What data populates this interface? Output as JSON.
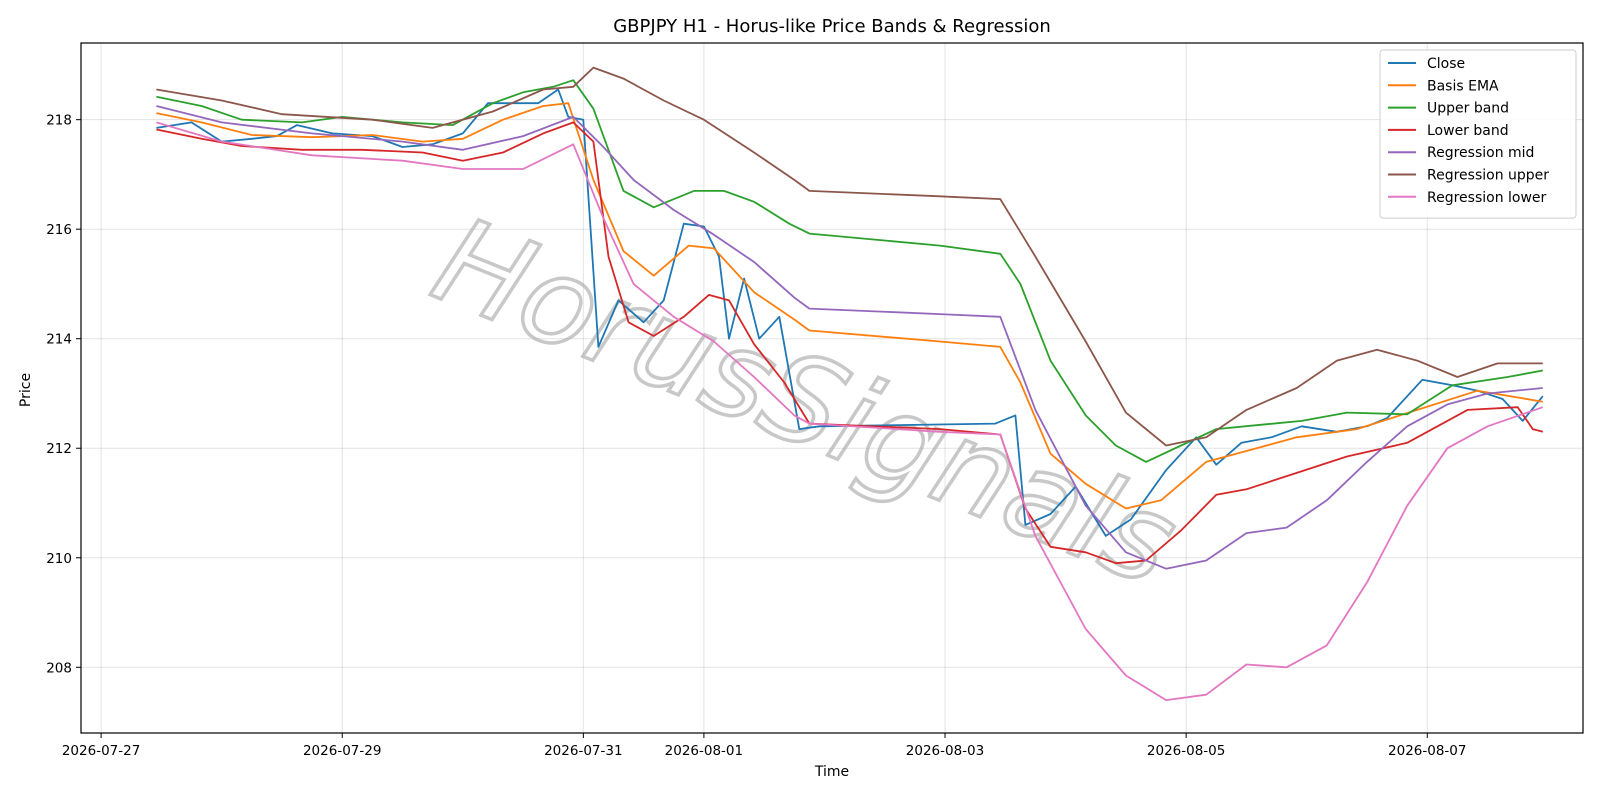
{
  "chart_data": {
    "type": "line",
    "title": "GBPJPY H1 - Horus-like Price Bands & Regression",
    "xlabel": "Time",
    "ylabel": "Price",
    "watermark": "HorusSignals",
    "x_range": [
      "2026-07-26T20:00",
      "2026-08-08T07:00"
    ],
    "ylim": [
      206.8,
      219.4
    ],
    "x_ticks": [
      "2026-07-27",
      "2026-07-29",
      "2026-07-31",
      "2026-08-01",
      "2026-08-03",
      "2026-08-05",
      "2026-08-07"
    ],
    "y_ticks": [
      208,
      210,
      212,
      214,
      216,
      218
    ],
    "grid": true,
    "legend_position": "top-right",
    "series": [
      {
        "name": "Close",
        "color": "#1f77b4",
        "points": [
          [
            "2026-07-27T11:00",
            217.85
          ],
          [
            "2026-07-27T18:00",
            217.95
          ],
          [
            "2026-07-28T00:00",
            217.6
          ],
          [
            "2026-07-28T06:00",
            217.65
          ],
          [
            "2026-07-28T11:00",
            217.7
          ],
          [
            "2026-07-28T15:00",
            217.9
          ],
          [
            "2026-07-28T22:00",
            217.75
          ],
          [
            "2026-07-29T06:00",
            217.7
          ],
          [
            "2026-07-29T12:00",
            217.5
          ],
          [
            "2026-07-29T18:00",
            217.55
          ],
          [
            "2026-07-30T00:00",
            217.75
          ],
          [
            "2026-07-30T05:00",
            218.3
          ],
          [
            "2026-07-30T10:00",
            218.3
          ],
          [
            "2026-07-30T15:00",
            218.3
          ],
          [
            "2026-07-30T19:00",
            218.55
          ],
          [
            "2026-07-30T21:00",
            218.05
          ],
          [
            "2026-07-31T00:00",
            218.0
          ],
          [
            "2026-07-31T03:00",
            213.85
          ],
          [
            "2026-07-31T07:00",
            214.7
          ],
          [
            "2026-07-31T12:00",
            214.3
          ],
          [
            "2026-07-31T16:00",
            214.7
          ],
          [
            "2026-07-31T20:00",
            216.1
          ],
          [
            "2026-08-01T00:00",
            216.05
          ],
          [
            "2026-08-01T03:00",
            215.5
          ],
          [
            "2026-08-01T05:00",
            214.0
          ],
          [
            "2026-08-01T08:00",
            215.1
          ],
          [
            "2026-08-01T11:00",
            214.0
          ],
          [
            "2026-08-01T15:00",
            214.4
          ],
          [
            "2026-08-01T19:00",
            212.35
          ],
          [
            "2026-08-01T23:00",
            212.4
          ],
          [
            "2026-08-03T10:00",
            212.45
          ],
          [
            "2026-08-03T14:00",
            212.6
          ],
          [
            "2026-08-03T16:00",
            210.6
          ],
          [
            "2026-08-03T21:00",
            210.8
          ],
          [
            "2026-08-04T02:00",
            211.3
          ],
          [
            "2026-08-04T08:00",
            210.4
          ],
          [
            "2026-08-04T13:00",
            210.7
          ],
          [
            "2026-08-04T20:00",
            211.6
          ],
          [
            "2026-08-05T02:00",
            212.2
          ],
          [
            "2026-08-05T06:00",
            211.7
          ],
          [
            "2026-08-05T11:00",
            212.1
          ],
          [
            "2026-08-05T17:00",
            212.2
          ],
          [
            "2026-08-05T23:00",
            212.4
          ],
          [
            "2026-08-06T06:00",
            212.3
          ],
          [
            "2026-08-06T12:00",
            212.4
          ],
          [
            "2026-08-06T16:00",
            212.55
          ],
          [
            "2026-08-06T23:00",
            213.25
          ],
          [
            "2026-08-07T05:00",
            213.15
          ],
          [
            "2026-08-07T10:00",
            213.05
          ],
          [
            "2026-08-07T15:00",
            212.9
          ],
          [
            "2026-08-07T19:00",
            212.5
          ],
          [
            "2026-08-07T23:00",
            212.95
          ]
        ]
      },
      {
        "name": "Basis EMA",
        "color": "#ff7f0e",
        "points": [
          [
            "2026-07-27T11:00",
            218.12
          ],
          [
            "2026-07-27T20:00",
            217.95
          ],
          [
            "2026-07-28T06:00",
            217.72
          ],
          [
            "2026-07-28T18:00",
            217.68
          ],
          [
            "2026-07-29T06:00",
            217.72
          ],
          [
            "2026-07-29T16:00",
            217.6
          ],
          [
            "2026-07-30T00:00",
            217.65
          ],
          [
            "2026-07-30T08:00",
            218.0
          ],
          [
            "2026-07-30T16:00",
            218.25
          ],
          [
            "2026-07-30T21:00",
            218.3
          ],
          [
            "2026-07-31T02:00",
            216.9
          ],
          [
            "2026-07-31T08:00",
            215.6
          ],
          [
            "2026-07-31T14:00",
            215.15
          ],
          [
            "2026-07-31T21:00",
            215.7
          ],
          [
            "2026-08-01T02:00",
            215.65
          ],
          [
            "2026-08-01T10:00",
            214.85
          ],
          [
            "2026-08-01T18:00",
            214.35
          ],
          [
            "2026-08-01T21:00",
            214.15
          ],
          [
            "2026-08-02T23:00",
            213.95
          ],
          [
            "2026-08-03T11:00",
            213.85
          ],
          [
            "2026-08-03T15:00",
            213.2
          ],
          [
            "2026-08-03T21:00",
            211.9
          ],
          [
            "2026-08-04T04:00",
            211.35
          ],
          [
            "2026-08-04T12:00",
            210.9
          ],
          [
            "2026-08-04T19:00",
            211.05
          ],
          [
            "2026-08-05T04:00",
            211.75
          ],
          [
            "2026-08-05T12:00",
            211.95
          ],
          [
            "2026-08-05T22:00",
            212.2
          ],
          [
            "2026-08-06T10:00",
            212.35
          ],
          [
            "2026-08-06T22:00",
            212.7
          ],
          [
            "2026-08-07T10:00",
            213.05
          ],
          [
            "2026-08-07T23:00",
            212.85
          ]
        ]
      },
      {
        "name": "Upper band",
        "color": "#2ca02c",
        "points": [
          [
            "2026-07-27T11:00",
            218.42
          ],
          [
            "2026-07-27T20:00",
            218.25
          ],
          [
            "2026-07-28T04:00",
            218.0
          ],
          [
            "2026-07-28T16:00",
            217.95
          ],
          [
            "2026-07-29T00:00",
            218.05
          ],
          [
            "2026-07-29T12:00",
            217.95
          ],
          [
            "2026-07-29T22:00",
            217.9
          ],
          [
            "2026-07-30T06:00",
            218.3
          ],
          [
            "2026-07-30T12:00",
            218.5
          ],
          [
            "2026-07-30T18:00",
            218.6
          ],
          [
            "2026-07-30T22:00",
            218.72
          ],
          [
            "2026-07-31T02:00",
            218.2
          ],
          [
            "2026-07-31T08:00",
            216.7
          ],
          [
            "2026-07-31T14:00",
            216.4
          ],
          [
            "2026-07-31T22:00",
            216.7
          ],
          [
            "2026-08-01T04:00",
            216.7
          ],
          [
            "2026-08-01T10:00",
            216.5
          ],
          [
            "2026-08-01T17:00",
            216.1
          ],
          [
            "2026-08-01T21:00",
            215.92
          ],
          [
            "2026-08-02T23:00",
            215.7
          ],
          [
            "2026-08-03T11:00",
            215.55
          ],
          [
            "2026-08-03T15:00",
            215.0
          ],
          [
            "2026-08-03T21:00",
            213.6
          ],
          [
            "2026-08-04T04:00",
            212.6
          ],
          [
            "2026-08-04T10:00",
            212.05
          ],
          [
            "2026-08-04T16:00",
            211.75
          ],
          [
            "2026-08-04T23:00",
            212.05
          ],
          [
            "2026-08-05T06:00",
            212.35
          ],
          [
            "2026-08-05T14:00",
            212.42
          ],
          [
            "2026-08-05T23:00",
            212.5
          ],
          [
            "2026-08-06T08:00",
            212.65
          ],
          [
            "2026-08-06T20:00",
            212.62
          ],
          [
            "2026-08-07T05:00",
            213.15
          ],
          [
            "2026-08-07T16:00",
            213.3
          ],
          [
            "2026-08-07T23:00",
            213.42
          ]
        ]
      },
      {
        "name": "Lower band",
        "color": "#d62728",
        "points": [
          [
            "2026-07-27T11:00",
            217.82
          ],
          [
            "2026-07-27T20:00",
            217.65
          ],
          [
            "2026-07-28T04:00",
            217.52
          ],
          [
            "2026-07-28T16:00",
            217.45
          ],
          [
            "2026-07-29T04:00",
            217.45
          ],
          [
            "2026-07-29T16:00",
            217.4
          ],
          [
            "2026-07-30T00:00",
            217.25
          ],
          [
            "2026-07-30T08:00",
            217.4
          ],
          [
            "2026-07-30T16:00",
            217.75
          ],
          [
            "2026-07-30T22:00",
            217.95
          ],
          [
            "2026-07-31T02:00",
            217.6
          ],
          [
            "2026-07-31T05:00",
            215.5
          ],
          [
            "2026-07-31T09:00",
            214.3
          ],
          [
            "2026-07-31T14:00",
            214.05
          ],
          [
            "2026-07-31T20:00",
            214.4
          ],
          [
            "2026-08-01T01:00",
            214.8
          ],
          [
            "2026-08-01T05:00",
            214.7
          ],
          [
            "2026-08-01T10:00",
            213.9
          ],
          [
            "2026-08-01T16:00",
            213.2
          ],
          [
            "2026-08-01T21:00",
            212.45
          ],
          [
            "2026-08-02T23:00",
            212.35
          ],
          [
            "2026-08-03T11:00",
            212.25
          ],
          [
            "2026-08-03T16:00",
            210.9
          ],
          [
            "2026-08-03T21:00",
            210.2
          ],
          [
            "2026-08-04T04:00",
            210.1
          ],
          [
            "2026-08-04T10:00",
            209.9
          ],
          [
            "2026-08-04T16:00",
            209.95
          ],
          [
            "2026-08-04T23:00",
            210.5
          ],
          [
            "2026-08-05T06:00",
            211.15
          ],
          [
            "2026-08-05T12:00",
            211.25
          ],
          [
            "2026-08-05T22:00",
            211.55
          ],
          [
            "2026-08-06T08:00",
            211.85
          ],
          [
            "2026-08-06T20:00",
            212.1
          ],
          [
            "2026-08-07T08:00",
            212.7
          ],
          [
            "2026-08-07T18:00",
            212.75
          ],
          [
            "2026-08-07T21:00",
            212.35
          ],
          [
            "2026-08-07T23:00",
            212.3
          ]
        ]
      },
      {
        "name": "Regression mid",
        "color": "#9467bd",
        "points": [
          [
            "2026-07-27T11:00",
            218.25
          ],
          [
            "2026-07-28T00:00",
            217.95
          ],
          [
            "2026-07-28T18:00",
            217.75
          ],
          [
            "2026-07-29T12:00",
            217.6
          ],
          [
            "2026-07-30T00:00",
            217.45
          ],
          [
            "2026-07-30T12:00",
            217.7
          ],
          [
            "2026-07-30T22:00",
            218.05
          ],
          [
            "2026-07-31T04:00",
            217.5
          ],
          [
            "2026-07-31T10:00",
            216.9
          ],
          [
            "2026-07-31T18:00",
            216.35
          ],
          [
            "2026-08-01T02:00",
            215.9
          ],
          [
            "2026-08-01T10:00",
            215.4
          ],
          [
            "2026-08-01T18:00",
            214.75
          ],
          [
            "2026-08-01T21:00",
            214.55
          ],
          [
            "2026-08-02T23:00",
            214.45
          ],
          [
            "2026-08-03T11:00",
            214.4
          ],
          [
            "2026-08-03T18:00",
            212.7
          ],
          [
            "2026-08-04T04:00",
            210.95
          ],
          [
            "2026-08-04T12:00",
            210.1
          ],
          [
            "2026-08-04T20:00",
            209.8
          ],
          [
            "2026-08-05T04:00",
            209.95
          ],
          [
            "2026-08-05T12:00",
            210.45
          ],
          [
            "2026-08-05T20:00",
            210.55
          ],
          [
            "2026-08-06T04:00",
            211.05
          ],
          [
            "2026-08-06T12:00",
            211.75
          ],
          [
            "2026-08-06T20:00",
            212.4
          ],
          [
            "2026-08-07T04:00",
            212.8
          ],
          [
            "2026-08-07T12:00",
            213.0
          ],
          [
            "2026-08-07T23:00",
            213.1
          ]
        ]
      },
      {
        "name": "Regression upper",
        "color": "#8c564b",
        "points": [
          [
            "2026-07-27T11:00",
            218.55
          ],
          [
            "2026-07-28T00:00",
            218.35
          ],
          [
            "2026-07-28T12:00",
            218.1
          ],
          [
            "2026-07-29T06:00",
            218.0
          ],
          [
            "2026-07-29T18:00",
            217.85
          ],
          [
            "2026-07-30T06:00",
            218.15
          ],
          [
            "2026-07-30T16:00",
            218.55
          ],
          [
            "2026-07-30T22:00",
            218.6
          ],
          [
            "2026-07-31T02:00",
            218.95
          ],
          [
            "2026-07-31T08:00",
            218.75
          ],
          [
            "2026-07-31T16:00",
            218.35
          ],
          [
            "2026-08-01T00:00",
            218.0
          ],
          [
            "2026-08-01T10:00",
            217.4
          ],
          [
            "2026-08-01T18:00",
            216.9
          ],
          [
            "2026-08-01T21:00",
            216.7
          ],
          [
            "2026-08-02T23:00",
            216.6
          ],
          [
            "2026-08-03T11:00",
            216.55
          ],
          [
            "2026-08-03T18:00",
            215.5
          ],
          [
            "2026-08-04T04:00",
            213.95
          ],
          [
            "2026-08-04T12:00",
            212.65
          ],
          [
            "2026-08-04T20:00",
            212.05
          ],
          [
            "2026-08-05T04:00",
            212.2
          ],
          [
            "2026-08-05T12:00",
            212.7
          ],
          [
            "2026-08-05T22:00",
            213.1
          ],
          [
            "2026-08-06T06:00",
            213.6
          ],
          [
            "2026-08-06T14:00",
            213.8
          ],
          [
            "2026-08-06T22:00",
            213.6
          ],
          [
            "2026-08-07T06:00",
            213.3
          ],
          [
            "2026-08-07T14:00",
            213.55
          ],
          [
            "2026-08-07T23:00",
            213.55
          ]
        ]
      },
      {
        "name": "Regression lower",
        "color": "#e377c2",
        "points": [
          [
            "2026-07-27T11:00",
            217.95
          ],
          [
            "2026-07-28T00:00",
            217.6
          ],
          [
            "2026-07-28T18:00",
            217.35
          ],
          [
            "2026-07-29T12:00",
            217.25
          ],
          [
            "2026-07-30T00:00",
            217.1
          ],
          [
            "2026-07-30T12:00",
            217.1
          ],
          [
            "2026-07-30T22:00",
            217.55
          ],
          [
            "2026-07-31T04:00",
            216.2
          ],
          [
            "2026-07-31T10:00",
            215.0
          ],
          [
            "2026-07-31T18:00",
            214.4
          ],
          [
            "2026-08-01T02:00",
            213.95
          ],
          [
            "2026-08-01T10:00",
            213.3
          ],
          [
            "2026-08-01T18:00",
            212.6
          ],
          [
            "2026-08-01T21:00",
            212.45
          ],
          [
            "2026-08-02T23:00",
            212.3
          ],
          [
            "2026-08-03T11:00",
            212.25
          ],
          [
            "2026-08-03T18:00",
            210.4
          ],
          [
            "2026-08-04T04:00",
            208.7
          ],
          [
            "2026-08-04T12:00",
            207.85
          ],
          [
            "2026-08-04T20:00",
            207.4
          ],
          [
            "2026-08-05T04:00",
            207.5
          ],
          [
            "2026-08-05T12:00",
            208.05
          ],
          [
            "2026-08-05T20:00",
            208.0
          ],
          [
            "2026-08-06T04:00",
            208.4
          ],
          [
            "2026-08-06T12:00",
            209.55
          ],
          [
            "2026-08-06T20:00",
            210.95
          ],
          [
            "2026-08-07T04:00",
            212.0
          ],
          [
            "2026-08-07T12:00",
            212.4
          ],
          [
            "2026-08-07T23:00",
            212.75
          ]
        ]
      }
    ]
  }
}
